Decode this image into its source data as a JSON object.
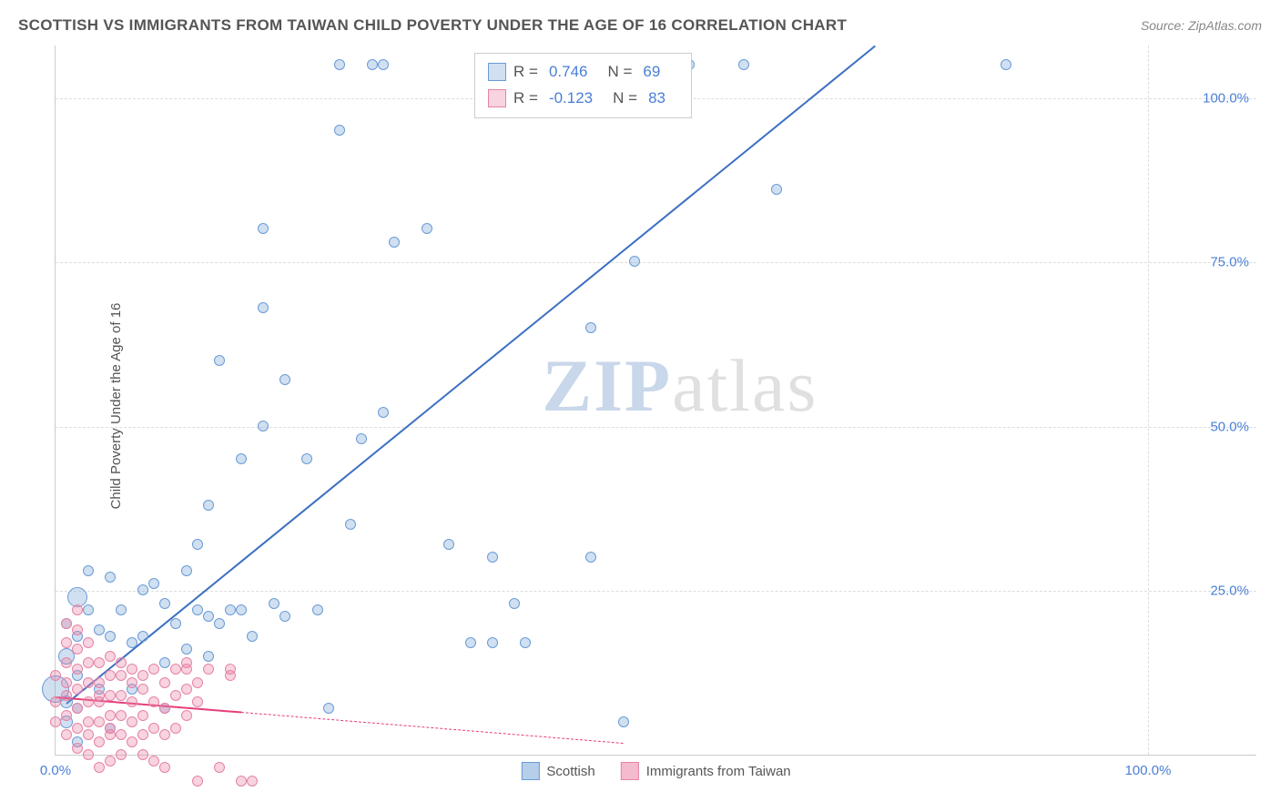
{
  "header": {
    "title": "SCOTTISH VS IMMIGRANTS FROM TAIWAN CHILD POVERTY UNDER THE AGE OF 16 CORRELATION CHART",
    "source": "Source: ZipAtlas.com"
  },
  "chart": {
    "type": "scatter",
    "ylabel": "Child Poverty Under the Age of 16",
    "xlim": [
      0,
      110
    ],
    "ylim": [
      0,
      108
    ],
    "xticks": [
      {
        "v": 0,
        "label": "0.0%",
        "color": "#4a7fd6"
      },
      {
        "v": 100,
        "label": "100.0%",
        "color": "#4a7fd6"
      }
    ],
    "yticks": [
      {
        "v": 25,
        "label": "25.0%",
        "color": "#4a7fd6"
      },
      {
        "v": 50,
        "label": "50.0%",
        "color": "#4a7fd6"
      },
      {
        "v": 75,
        "label": "75.0%",
        "color": "#4a7fd6"
      },
      {
        "v": 100,
        "label": "100.0%",
        "color": "#4a7fd6"
      }
    ],
    "grid_color": "#dddddd",
    "background_color": "#ffffff",
    "watermark": {
      "zip": "ZIP",
      "atlas": "atlas"
    },
    "series": [
      {
        "name": "Scottish",
        "color_fill": "rgba(120,165,215,0.35)",
        "color_stroke": "#6a9bd6",
        "trend_color": "#3b6fc2",
        "trend": {
          "x1": 1,
          "y1": 8,
          "x2": 75,
          "y2": 108,
          "solid_until_x": 75
        },
        "R": "0.746",
        "N": "69",
        "points": [
          [
            0,
            10,
            30
          ],
          [
            1,
            5,
            14
          ],
          [
            1,
            8,
            14
          ],
          [
            1,
            15,
            18
          ],
          [
            1,
            20,
            12
          ],
          [
            2,
            2,
            12
          ],
          [
            2,
            7,
            12
          ],
          [
            2,
            12,
            12
          ],
          [
            2,
            18,
            12
          ],
          [
            2,
            24,
            22
          ],
          [
            3,
            22,
            12
          ],
          [
            3,
            28,
            12
          ],
          [
            4,
            10,
            12
          ],
          [
            4,
            19,
            12
          ],
          [
            5,
            4,
            12
          ],
          [
            5,
            18,
            12
          ],
          [
            5,
            27,
            12
          ],
          [
            6,
            22,
            12
          ],
          [
            7,
            10,
            12
          ],
          [
            7,
            17,
            12
          ],
          [
            8,
            25,
            12
          ],
          [
            8,
            18,
            12
          ],
          [
            9,
            26,
            12
          ],
          [
            10,
            7,
            12
          ],
          [
            10,
            14,
            12
          ],
          [
            10,
            23,
            12
          ],
          [
            11,
            20,
            12
          ],
          [
            12,
            16,
            12
          ],
          [
            12,
            28,
            12
          ],
          [
            13,
            22,
            12
          ],
          [
            13,
            32,
            12
          ],
          [
            14,
            15,
            12
          ],
          [
            14,
            21,
            12
          ],
          [
            14,
            38,
            12
          ],
          [
            15,
            20,
            12
          ],
          [
            15,
            60,
            12
          ],
          [
            16,
            22,
            12
          ],
          [
            17,
            22,
            12
          ],
          [
            17,
            45,
            12
          ],
          [
            18,
            18,
            12
          ],
          [
            19,
            50,
            12
          ],
          [
            19,
            80,
            12
          ],
          [
            19,
            68,
            12
          ],
          [
            20,
            23,
            12
          ],
          [
            21,
            21,
            12
          ],
          [
            21,
            57,
            12
          ],
          [
            23,
            45,
            12
          ],
          [
            24,
            22,
            12
          ],
          [
            25,
            7,
            12
          ],
          [
            26,
            95,
            12
          ],
          [
            26,
            105,
            12
          ],
          [
            27,
            35,
            12
          ],
          [
            28,
            48,
            12
          ],
          [
            29,
            105,
            12
          ],
          [
            30,
            105,
            12
          ],
          [
            30,
            52,
            12
          ],
          [
            31,
            78,
            12
          ],
          [
            34,
            80,
            12
          ],
          [
            36,
            32,
            12
          ],
          [
            38,
            17,
            12
          ],
          [
            40,
            30,
            12
          ],
          [
            40,
            17,
            12
          ],
          [
            42,
            23,
            12
          ],
          [
            43,
            17,
            12
          ],
          [
            49,
            65,
            12
          ],
          [
            49,
            30,
            12
          ],
          [
            52,
            5,
            12
          ],
          [
            53,
            75,
            12
          ],
          [
            55,
            105,
            12
          ],
          [
            55,
            105,
            12
          ],
          [
            58,
            105,
            12
          ],
          [
            63,
            105,
            12
          ],
          [
            66,
            86,
            12
          ],
          [
            87,
            105,
            12
          ]
        ]
      },
      {
        "name": "Immigrants from Taiwan",
        "color_fill": "rgba(235,130,165,0.35)",
        "color_stroke": "#e584a6",
        "trend_color": "#e63e7b",
        "trend": {
          "x1": 0,
          "y1": 9,
          "x2": 52,
          "y2": 2,
          "solid_until_x": 17
        },
        "R": "-0.123",
        "N": "83",
        "points": [
          [
            0,
            5,
            12
          ],
          [
            0,
            8,
            12
          ],
          [
            0,
            12,
            12
          ],
          [
            1,
            3,
            12
          ],
          [
            1,
            6,
            12
          ],
          [
            1,
            9,
            12
          ],
          [
            1,
            11,
            12
          ],
          [
            1,
            14,
            12
          ],
          [
            1,
            17,
            12
          ],
          [
            1,
            20,
            12
          ],
          [
            2,
            1,
            12
          ],
          [
            2,
            4,
            12
          ],
          [
            2,
            7,
            12
          ],
          [
            2,
            10,
            12
          ],
          [
            2,
            13,
            12
          ],
          [
            2,
            16,
            12
          ],
          [
            2,
            19,
            12
          ],
          [
            2,
            22,
            12
          ],
          [
            3,
            0,
            12
          ],
          [
            3,
            3,
            12
          ],
          [
            3,
            5,
            12
          ],
          [
            3,
            8,
            12
          ],
          [
            3,
            11,
            12
          ],
          [
            3,
            14,
            12
          ],
          [
            3,
            17,
            12
          ],
          [
            4,
            -2,
            12
          ],
          [
            4,
            2,
            12
          ],
          [
            4,
            5,
            12
          ],
          [
            4,
            8,
            12
          ],
          [
            4,
            11,
            12
          ],
          [
            4,
            14,
            12
          ],
          [
            4,
            9,
            12
          ],
          [
            5,
            -1,
            12
          ],
          [
            5,
            3,
            12
          ],
          [
            5,
            6,
            12
          ],
          [
            5,
            9,
            12
          ],
          [
            5,
            12,
            12
          ],
          [
            5,
            15,
            12
          ],
          [
            5,
            4,
            12
          ],
          [
            6,
            0,
            12
          ],
          [
            6,
            3,
            12
          ],
          [
            6,
            6,
            12
          ],
          [
            6,
            9,
            12
          ],
          [
            6,
            12,
            12
          ],
          [
            6,
            14,
            12
          ],
          [
            7,
            2,
            12
          ],
          [
            7,
            5,
            12
          ],
          [
            7,
            8,
            12
          ],
          [
            7,
            11,
            12
          ],
          [
            7,
            13,
            12
          ],
          [
            8,
            0,
            12
          ],
          [
            8,
            3,
            12
          ],
          [
            8,
            6,
            12
          ],
          [
            8,
            10,
            12
          ],
          [
            8,
            12,
            12
          ],
          [
            9,
            -1,
            12
          ],
          [
            9,
            4,
            12
          ],
          [
            9,
            8,
            12
          ],
          [
            9,
            13,
            12
          ],
          [
            10,
            -2,
            12
          ],
          [
            10,
            3,
            12
          ],
          [
            10,
            7,
            12
          ],
          [
            10,
            11,
            12
          ],
          [
            11,
            4,
            12
          ],
          [
            11,
            9,
            12
          ],
          [
            11,
            13,
            12
          ],
          [
            12,
            6,
            12
          ],
          [
            12,
            10,
            12
          ],
          [
            12,
            14,
            12
          ],
          [
            12,
            13,
            12
          ],
          [
            13,
            11,
            12
          ],
          [
            13,
            8,
            12
          ],
          [
            13,
            -4,
            12
          ],
          [
            14,
            13,
            12
          ],
          [
            15,
            -2,
            12
          ],
          [
            16,
            12,
            12
          ],
          [
            16,
            13,
            12
          ],
          [
            17,
            -4,
            12
          ],
          [
            18,
            -4,
            12
          ]
        ]
      }
    ],
    "legend_bottom": [
      {
        "label": "Scottish",
        "fill": "rgba(120,165,215,0.55)",
        "stroke": "#6a9bd6"
      },
      {
        "label": "Immigrants from Taiwan",
        "fill": "rgba(235,130,165,0.55)",
        "stroke": "#e584a6"
      }
    ],
    "legend_stats_label": {
      "R": "R =",
      "N": "N ="
    }
  }
}
